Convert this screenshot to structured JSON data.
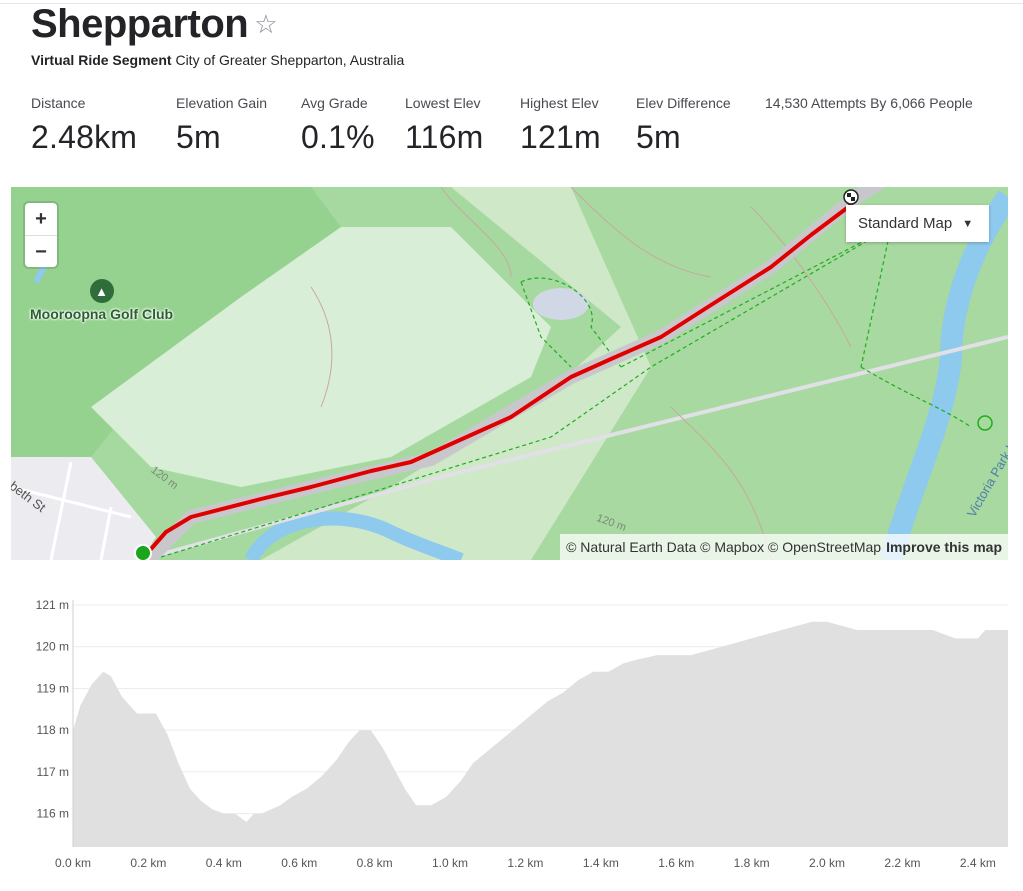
{
  "header": {
    "title": "Shepparton",
    "subtitle_strong": "Virtual Ride Segment",
    "subtitle_rest": "City of Greater Shepparton, Australia"
  },
  "stats": [
    {
      "label": "Distance",
      "value": "2.48km"
    },
    {
      "label": "Elevation Gain",
      "value": "5m"
    },
    {
      "label": "Avg Grade",
      "value": "0.1%"
    },
    {
      "label": "Lowest Elev",
      "value": "116m"
    },
    {
      "label": "Highest Elev",
      "value": "121m"
    },
    {
      "label": "Elev Difference",
      "value": "5m"
    }
  ],
  "attempts": "14,530 Attempts By 6,066 People",
  "map": {
    "zoom_in": "+",
    "zoom_out": "−",
    "type_selector": "Standard Map",
    "poi_name": "Mooroopna Golf Club",
    "street_label": "beth St",
    "contour_label_1": "120 m",
    "contour_label_2": "120 m",
    "water_label": "Victoria Park Lake",
    "attribution": "© Natural Earth Data © Mapbox © OpenStreetMap",
    "improve_link": "Improve this map",
    "route_color": "#e00000",
    "start_color": "#1aa51a"
  },
  "chart_data": {
    "type": "area",
    "xlabel": "",
    "ylabel": "",
    "x_ticks": [
      "0.0 km",
      "0.2 km",
      "0.4 km",
      "0.6 km",
      "0.8 km",
      "1.0 km",
      "1.2 km",
      "1.4 km",
      "1.6 km",
      "1.8 km",
      "2.0 km",
      "2.2 km",
      "2.4 km"
    ],
    "y_ticks": [
      "116 m",
      "117 m",
      "118 m",
      "119 m",
      "120 m",
      "121 m"
    ],
    "xlim": [
      0,
      2.48
    ],
    "ylim": [
      115.2,
      121.0
    ],
    "fill_color": "#e0e0e0",
    "series": [
      {
        "x": [
          0.0,
          0.02,
          0.05,
          0.08,
          0.1,
          0.13,
          0.17,
          0.22,
          0.25,
          0.28,
          0.31,
          0.34,
          0.37,
          0.4,
          0.43,
          0.46,
          0.48,
          0.5,
          0.55,
          0.58,
          0.62,
          0.66,
          0.7,
          0.73,
          0.76,
          0.79,
          0.82,
          0.85,
          0.88,
          0.91,
          0.95,
          0.99,
          1.03,
          1.06,
          1.1,
          1.14,
          1.18,
          1.22,
          1.26,
          1.3,
          1.34,
          1.38,
          1.42,
          1.46,
          1.5,
          1.55,
          1.6,
          1.64,
          1.68,
          1.72,
          1.76,
          1.8,
          1.84,
          1.88,
          1.92,
          1.96,
          2.0,
          2.04,
          2.08,
          2.12,
          2.2,
          2.28,
          2.34,
          2.4,
          2.42,
          2.48
        ],
        "y": [
          118.0,
          118.6,
          119.1,
          119.4,
          119.3,
          118.8,
          118.4,
          118.4,
          117.9,
          117.2,
          116.6,
          116.3,
          116.1,
          116.0,
          116.0,
          115.8,
          116.0,
          116.0,
          116.2,
          116.4,
          116.6,
          116.9,
          117.3,
          117.7,
          118.0,
          118.0,
          117.6,
          117.1,
          116.6,
          116.2,
          116.2,
          116.4,
          116.8,
          117.2,
          117.5,
          117.8,
          118.1,
          118.4,
          118.7,
          118.9,
          119.2,
          119.4,
          119.4,
          119.6,
          119.7,
          119.8,
          119.8,
          119.8,
          119.9,
          120.0,
          120.1,
          120.2,
          120.3,
          120.4,
          120.5,
          120.6,
          120.6,
          120.5,
          120.4,
          120.4,
          120.4,
          120.4,
          120.2,
          120.2,
          120.4,
          120.4
        ]
      }
    ]
  }
}
